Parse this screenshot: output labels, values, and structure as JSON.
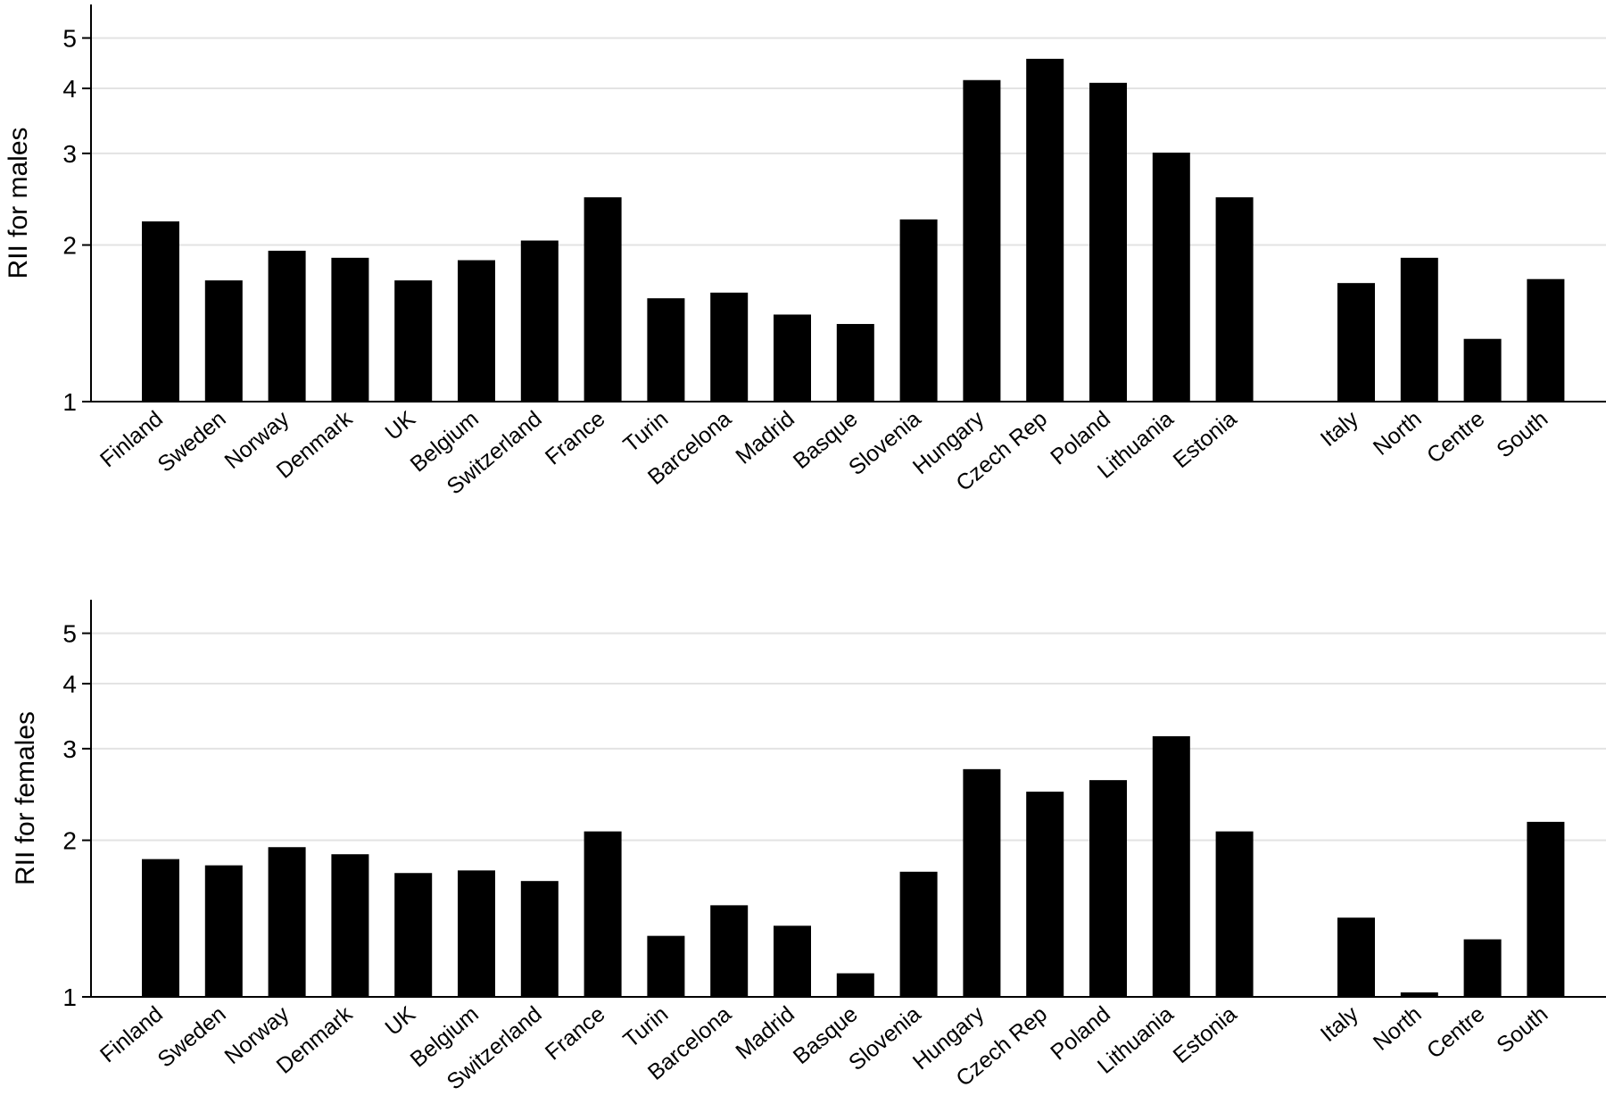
{
  "chart_data": [
    {
      "type": "bar",
      "ylabel": "RII for males",
      "yscale": "log",
      "ylim": [
        1,
        5.8
      ],
      "yticks": [
        "1",
        "2",
        "3",
        "4",
        "5"
      ],
      "grid": "horizontal",
      "bar_color": "#000000",
      "categories": [
        "Finland",
        "Sweden",
        "Norway",
        "Denmark",
        "UK",
        "Belgium",
        "Switzerland",
        "France",
        "Turin",
        "Barcelona",
        "Madrid",
        "Basque",
        "Slovenia",
        "Hungary",
        "Czech Rep",
        "Poland",
        "Lithuania",
        "Estonia",
        "Italy",
        "North",
        "Centre",
        "South"
      ],
      "values": [
        2.22,
        1.71,
        1.95,
        1.89,
        1.71,
        1.87,
        2.04,
        2.47,
        1.58,
        1.62,
        1.47,
        1.41,
        2.24,
        4.15,
        4.56,
        4.1,
        3.01,
        2.47,
        1.69,
        1.89,
        1.32,
        1.72
      ]
    },
    {
      "type": "bar",
      "ylabel": "RII for females",
      "yscale": "log",
      "ylim": [
        1,
        5.8
      ],
      "yticks": [
        "1",
        "2",
        "3",
        "4",
        "5"
      ],
      "grid": "horizontal",
      "bar_color": "#000000",
      "categories": [
        "Finland",
        "Sweden",
        "Norway",
        "Denmark",
        "UK",
        "Belgium",
        "Switzerland",
        "France",
        "Turin",
        "Barcelona",
        "Madrid",
        "Basque",
        "Slovenia",
        "Hungary",
        "Czech Rep",
        "Poland",
        "Lithuania",
        "Estonia",
        "Italy",
        "North",
        "Centre",
        "South"
      ],
      "values": [
        1.84,
        1.79,
        1.94,
        1.88,
        1.73,
        1.75,
        1.67,
        2.08,
        1.31,
        1.5,
        1.37,
        1.11,
        1.74,
        2.74,
        2.48,
        2.61,
        3.17,
        2.08,
        1.42,
        1.02,
        1.29,
        2.17
      ]
    }
  ]
}
